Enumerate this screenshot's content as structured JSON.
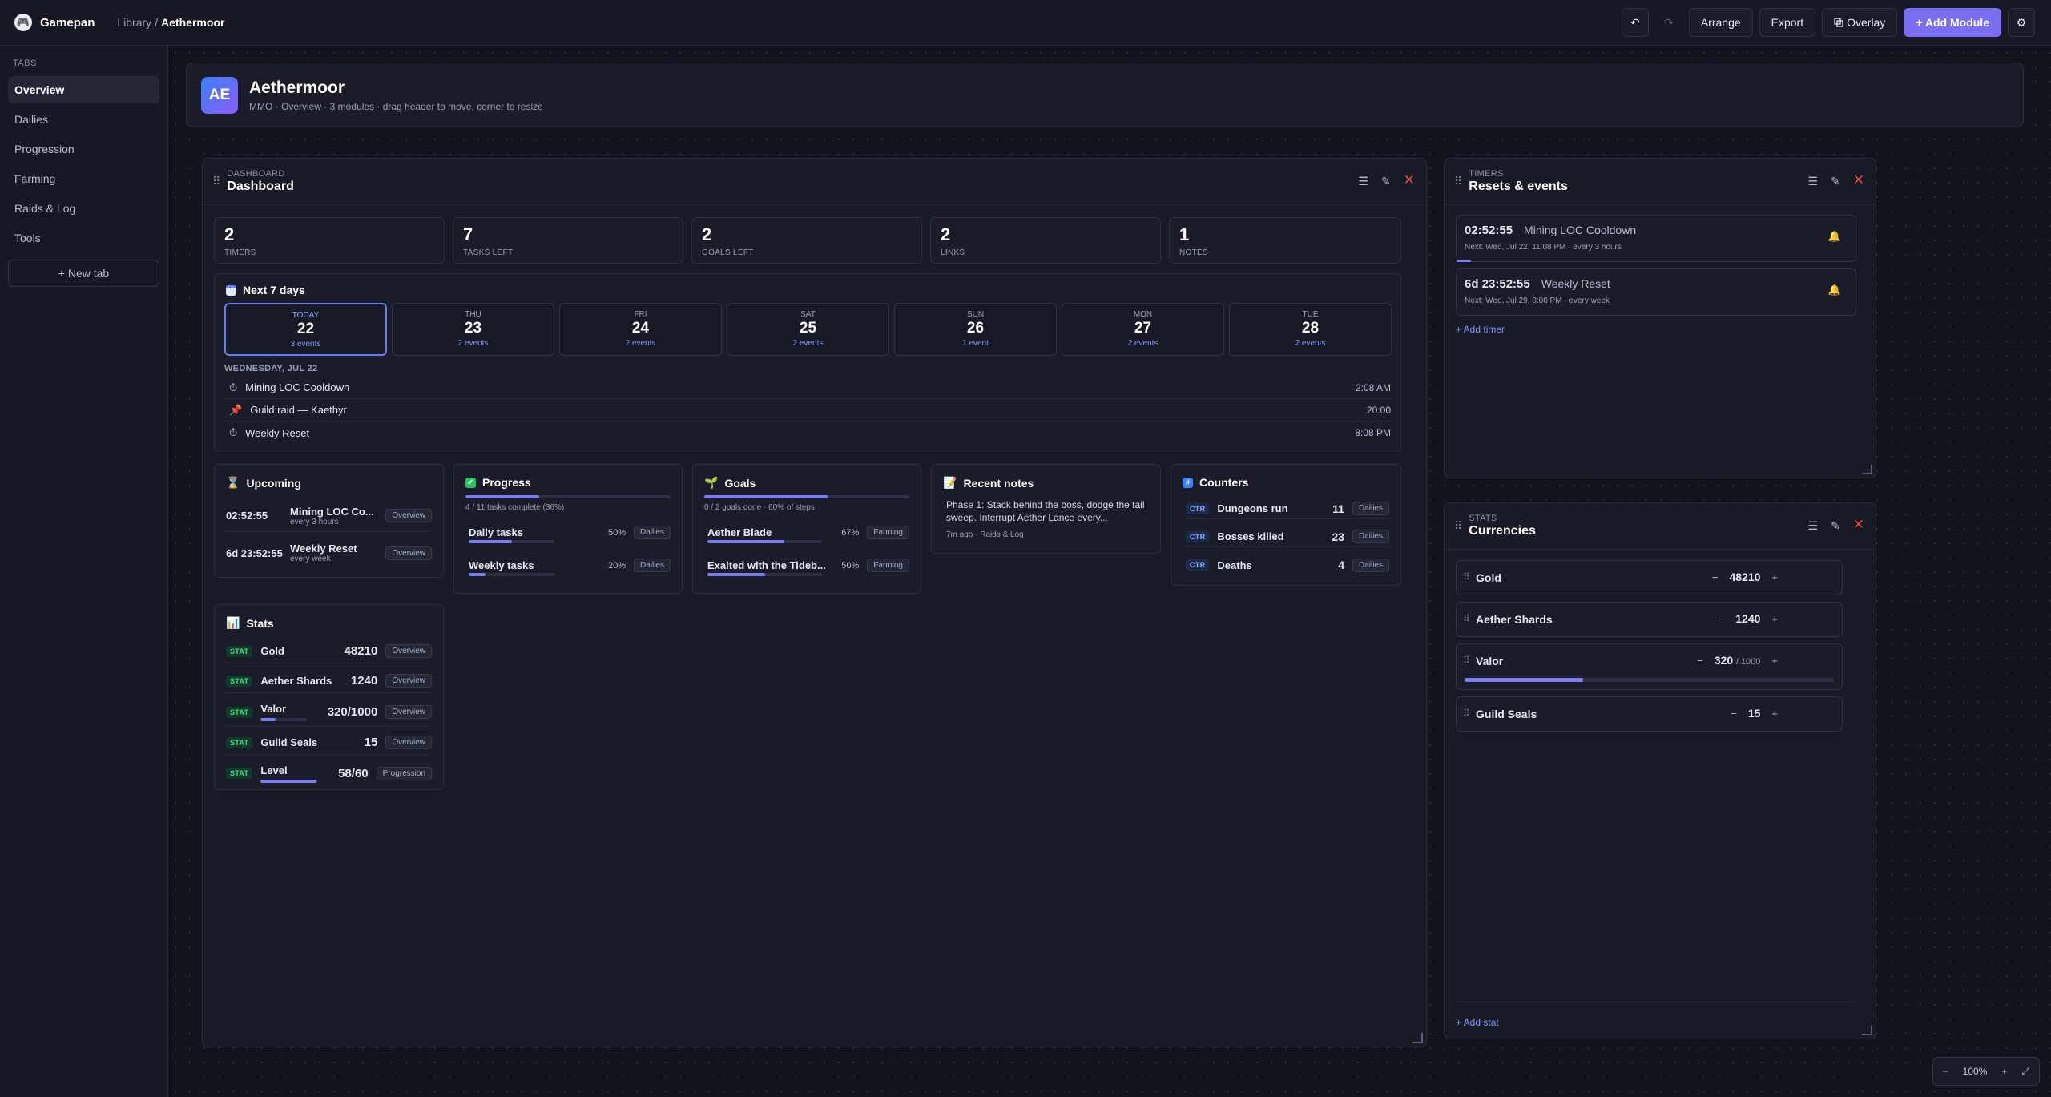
{
  "app": {
    "name": "Gamepan",
    "breadcrumb_parent": "Library",
    "breadcrumb_sep": "/",
    "breadcrumb_current": "Aethermoor"
  },
  "toolbar": {
    "undo": "↶",
    "redo": "↷",
    "arrange": "Arrange",
    "export": "Export",
    "overlay": "Overlay",
    "add_module": "+ Add Module",
    "settings": "⚙"
  },
  "sidebar": {
    "label": "TABS",
    "items": [
      "Overview",
      "Dailies",
      "Progression",
      "Farming",
      "Raids & Log",
      "Tools"
    ],
    "new_tab": "+ New tab"
  },
  "header": {
    "initials": "AE",
    "title": "Aethermoor",
    "subtitle": "MMO · Overview · 3 modules · drag header to move, corner to resize"
  },
  "dashboard": {
    "kicker": "DASHBOARD",
    "title": "Dashboard",
    "kpis": [
      {
        "value": "2",
        "label": "TIMERS"
      },
      {
        "value": "7",
        "label": "TASKS LEFT"
      },
      {
        "value": "2",
        "label": "GOALS LEFT"
      },
      {
        "value": "2",
        "label": "LINKS"
      },
      {
        "value": "1",
        "label": "NOTES"
      }
    ],
    "week": {
      "title": "Next 7 days",
      "days": [
        {
          "name": "TODAY",
          "num": "22",
          "events": "3 events"
        },
        {
          "name": "THU",
          "num": "23",
          "events": "2 events"
        },
        {
          "name": "FRI",
          "num": "24",
          "events": "2 events"
        },
        {
          "name": "SAT",
          "num": "25",
          "events": "2 events"
        },
        {
          "name": "SUN",
          "num": "26",
          "events": "1 event"
        },
        {
          "name": "MON",
          "num": "27",
          "events": "2 events"
        },
        {
          "name": "TUE",
          "num": "28",
          "events": "2 events"
        }
      ],
      "date_label": "WEDNESDAY, JUL 22",
      "events": [
        {
          "name": "Mining LOC Cooldown",
          "time": "2:08 AM"
        },
        {
          "name": "Guild raid — Kaethyr",
          "time": "20:00"
        },
        {
          "name": "Weekly Reset",
          "time": "8:08 PM"
        }
      ]
    },
    "upcoming": {
      "title": "Upcoming",
      "items": [
        {
          "time": "02:52:55",
          "name": "Mining LOC Co...",
          "sub": "every 3 hours",
          "tag": "Overview"
        },
        {
          "time": "6d 23:52:55",
          "name": "Weekly Reset",
          "sub": "every week",
          "tag": "Overview"
        }
      ]
    },
    "progress": {
      "title": "Progress",
      "summary": "4 / 11 tasks complete (36%)",
      "summary_pct": 36,
      "items": [
        {
          "name": "Daily tasks",
          "pct_label": "50%",
          "pct": 50,
          "tag": "Dailies"
        },
        {
          "name": "Weekly tasks",
          "pct_label": "20%",
          "pct": 20,
          "tag": "Dailies"
        }
      ]
    },
    "goals": {
      "title": "Goals",
      "summary": "0 / 2 goals done · 60% of steps",
      "summary_pct": 60,
      "items": [
        {
          "name": "Aether Blade",
          "pct_label": "67%",
          "pct": 67,
          "tag": "Farming"
        },
        {
          "name": "Exalted with the Tideb...",
          "pct_label": "50%",
          "pct": 50,
          "tag": "Farming"
        }
      ]
    },
    "notes": {
      "title": "Recent notes",
      "text": "Phase 1: Stack behind the boss, dodge the tail sweep. Interrupt Aether Lance every...",
      "meta": "7m ago · Raids & Log"
    },
    "counters": {
      "title": "Counters",
      "badge": "CTR",
      "items": [
        {
          "name": "Dungeons run",
          "value": "11",
          "tag": "Dailies"
        },
        {
          "name": "Bosses killed",
          "value": "23",
          "tag": "Dailies"
        },
        {
          "name": "Deaths",
          "value": "4",
          "tag": "Dailies"
        }
      ]
    },
    "stats": {
      "title": "Stats",
      "badge": "STAT",
      "items": [
        {
          "name": "Gold",
          "value": "48210",
          "tag": "Overview"
        },
        {
          "name": "Aether Shards",
          "value": "1240",
          "tag": "Overview"
        },
        {
          "name": "Valor",
          "value": "320/1000",
          "tag": "Overview",
          "pct": 32
        },
        {
          "name": "Guild Seals",
          "value": "15",
          "tag": "Overview"
        },
        {
          "name": "Level",
          "value": "58/60",
          "tag": "Progression",
          "pct": 97
        }
      ]
    }
  },
  "timers": {
    "kicker": "TIMERS",
    "title": "Resets & events",
    "items": [
      {
        "time": "02:52:55",
        "name": "Mining LOC Cooldown",
        "next": "Next: Wed, Jul 22, 11:08 PM · every 3 hours"
      },
      {
        "time": "6d 23:52:55",
        "name": "Weekly Reset",
        "next": "Next: Wed, Jul 29, 8:08 PM · every week"
      }
    ],
    "add": "+ Add timer"
  },
  "currencies": {
    "kicker": "STATS",
    "title": "Currencies",
    "items": [
      {
        "name": "Gold",
        "value": "48210"
      },
      {
        "name": "Aether Shards",
        "value": "1240"
      },
      {
        "name": "Valor",
        "value": "320",
        "max": "/ 1000",
        "pct": 32
      },
      {
        "name": "Guild Seals",
        "value": "15"
      }
    ],
    "minus": "−",
    "plus": "+",
    "add": "+ Add stat"
  },
  "zoom": {
    "minus": "−",
    "level": "100%",
    "plus": "+",
    "fit": "⤢"
  },
  "colors": {
    "accent": "#7a6ff0",
    "danger": "#ef4444",
    "stat_badge": "#3ddc84",
    "bell": "#f5b31b"
  }
}
